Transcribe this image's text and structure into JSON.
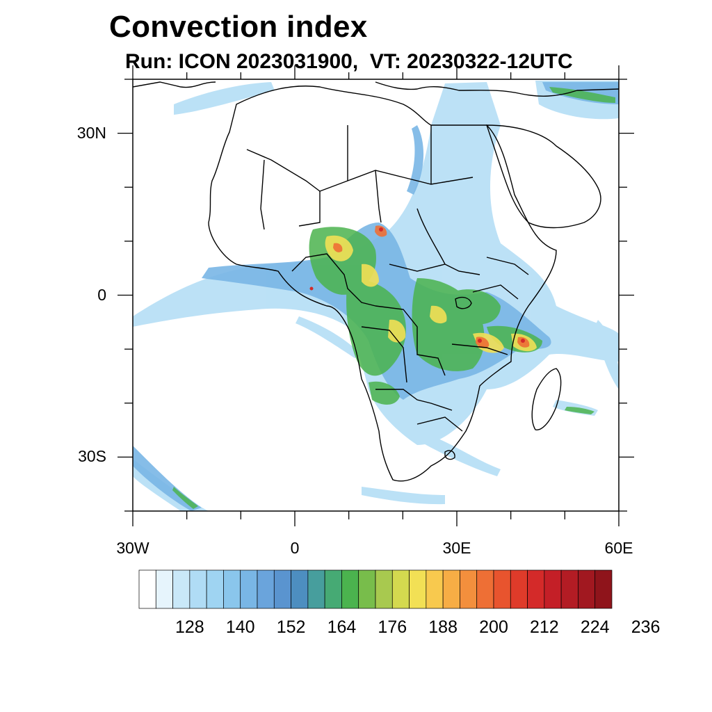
{
  "title": "Convection index",
  "subtitle": "Run: ICON 2023031900,  VT: 20230322-12UTC",
  "map": {
    "extent": {
      "lon": [
        -30,
        60
      ],
      "lat": [
        -40,
        40
      ]
    },
    "lat_labels": [
      {
        "value": 30,
        "text": "30N"
      },
      {
        "value": 0,
        "text": "0"
      },
      {
        "value": -30,
        "text": "30S"
      }
    ],
    "lon_labels": [
      {
        "value": -30,
        "text": "30W"
      },
      {
        "value": 0,
        "text": "0"
      },
      {
        "value": 30,
        "text": "30E"
      },
      {
        "value": 60,
        "text": "60E"
      }
    ]
  },
  "colorbar": {
    "levels": [
      128,
      140,
      152,
      164,
      176,
      188,
      200,
      212,
      224,
      236
    ],
    "labels": [
      "128",
      "140",
      "152",
      "164",
      "176",
      "188",
      "200",
      "212",
      "224",
      "236"
    ],
    "colors": [
      "#ffffff",
      "#e6f4fc",
      "#c9e8f8",
      "#b0dcf5",
      "#9fd4f2",
      "#8ac6ec",
      "#79b6e5",
      "#6aa4dc",
      "#5a94cf",
      "#4d8ec0",
      "#479e9d",
      "#46aa74",
      "#4bb34e",
      "#78bd4b",
      "#a8c94f",
      "#d4d94f",
      "#f2e055",
      "#f8c94e",
      "#f7ad45",
      "#f38f3d",
      "#ee6f35",
      "#e8542e",
      "#df3b2a",
      "#d42a29",
      "#c41f27",
      "#b31c24",
      "#a11820",
      "#8f141b"
    ]
  }
}
